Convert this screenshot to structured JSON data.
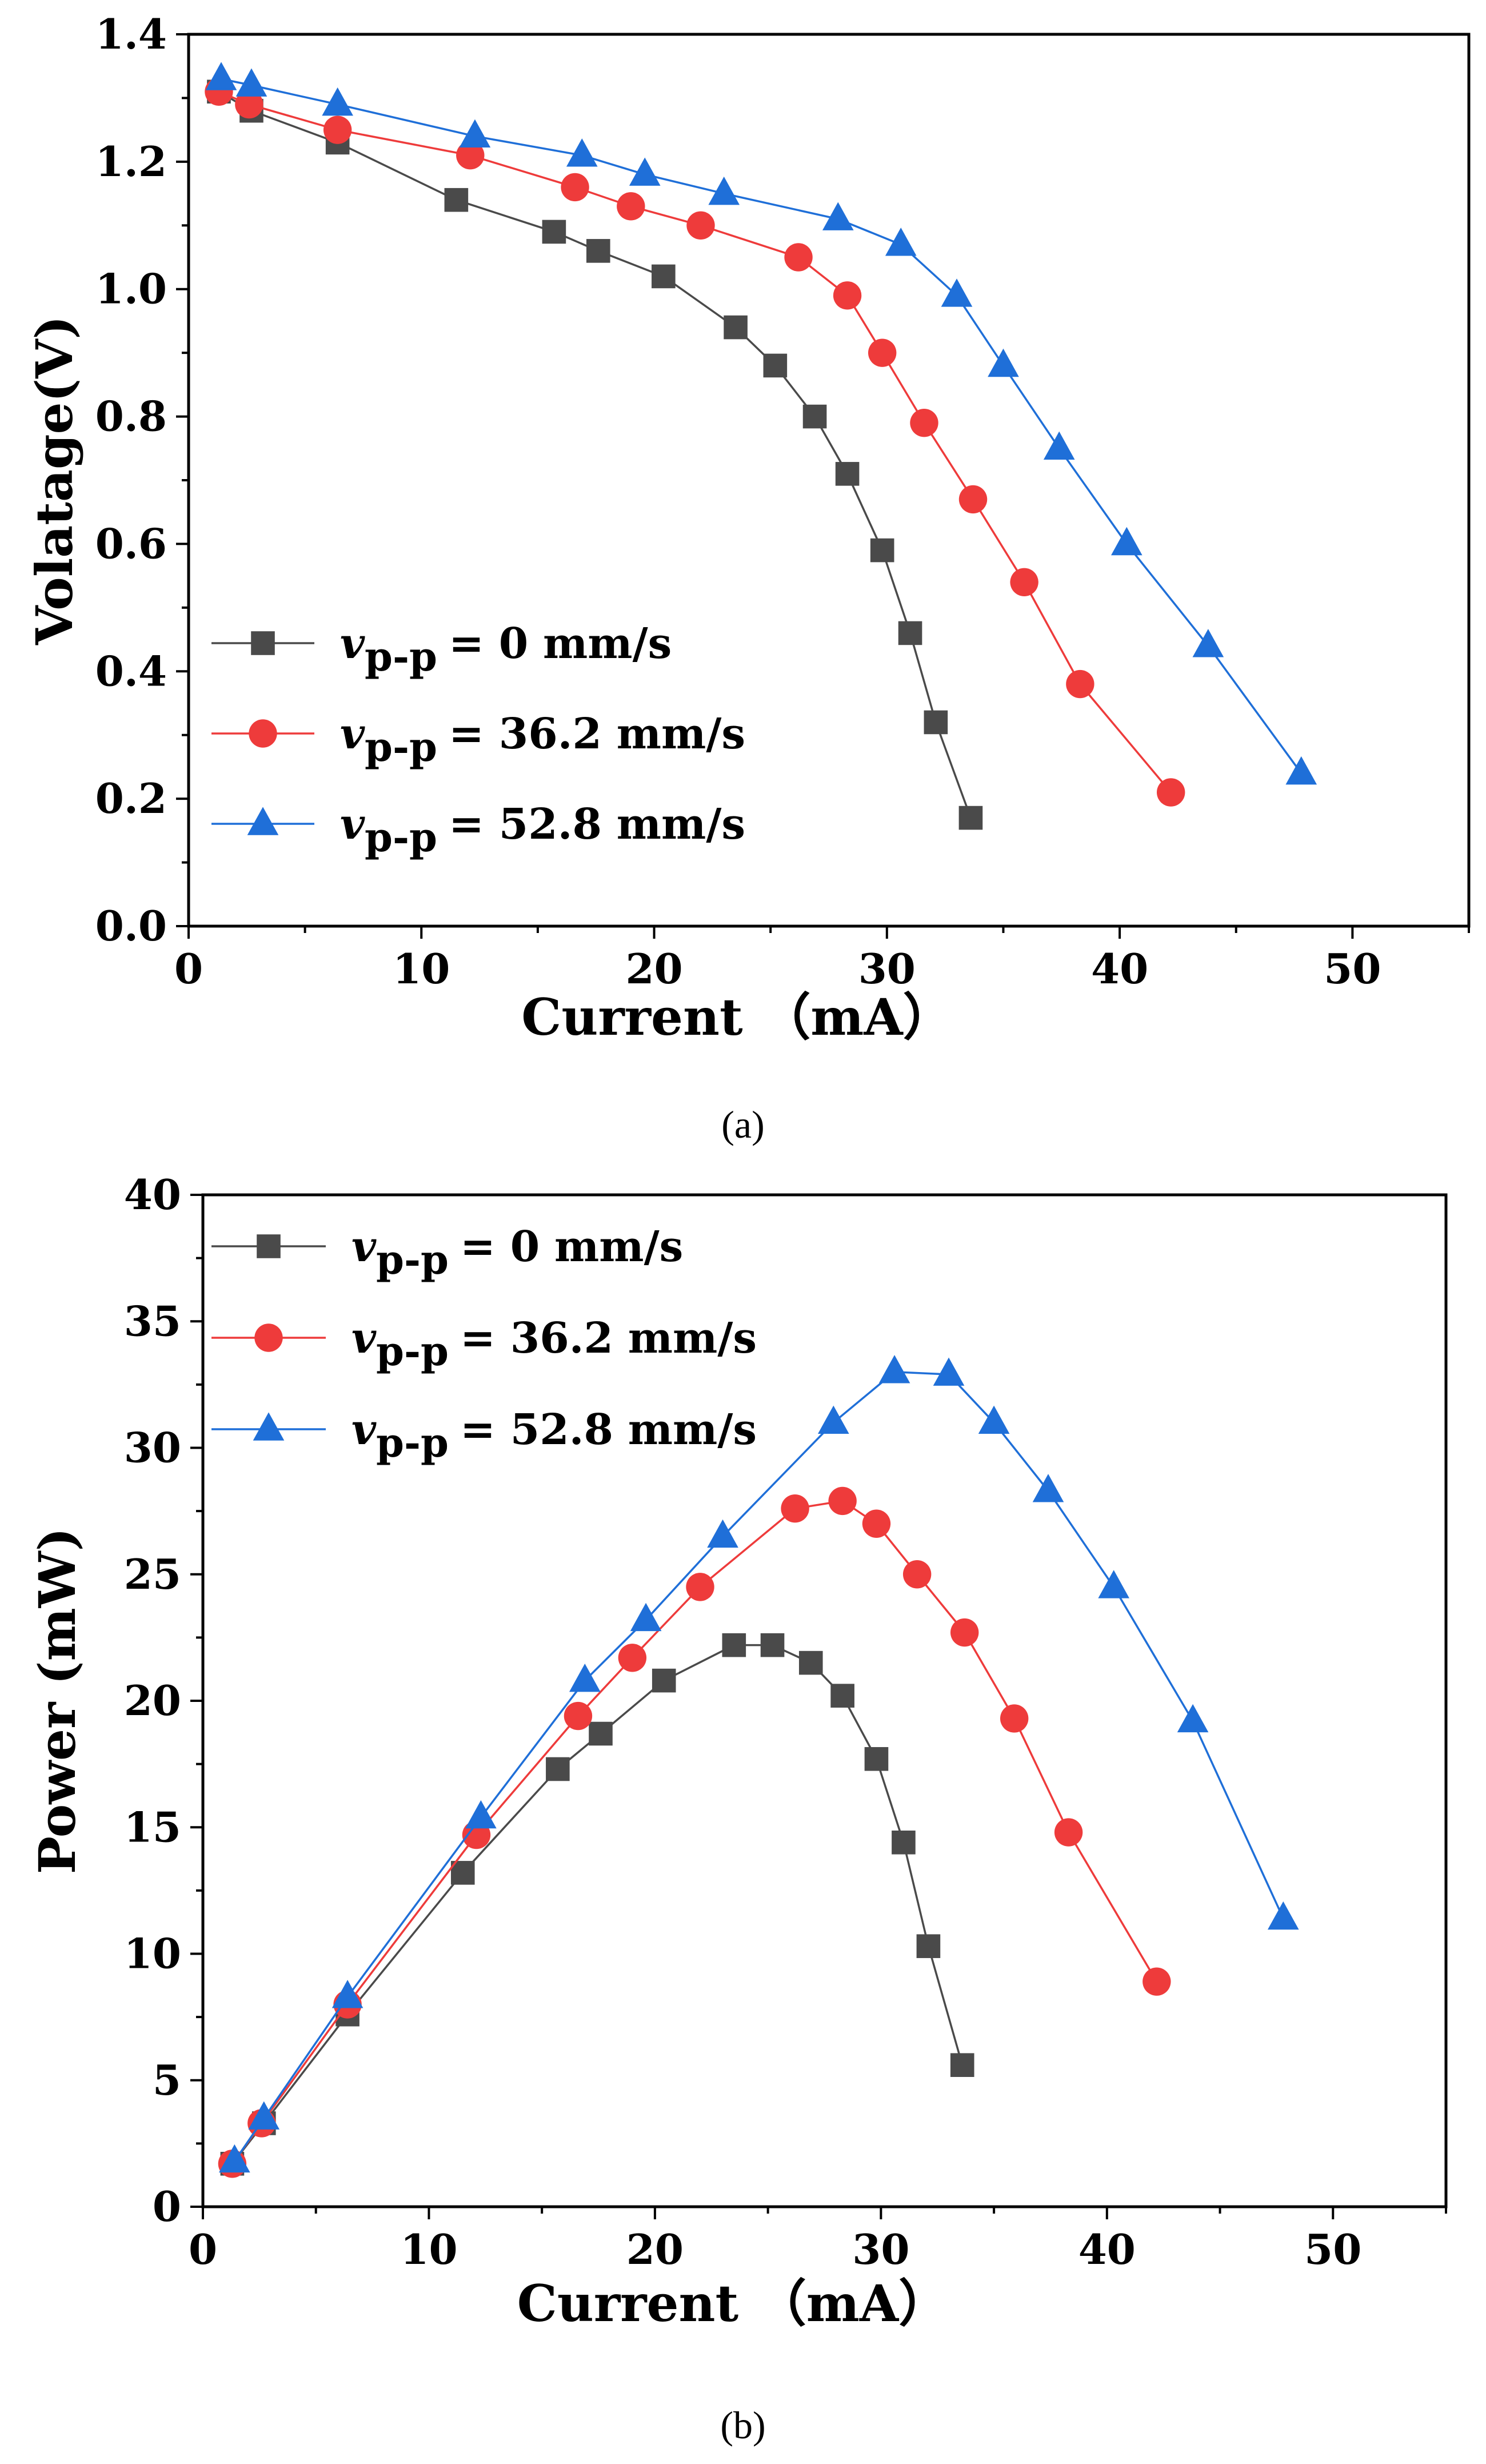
{
  "chart_data": [
    {
      "type": "line",
      "panel_label": "(a)",
      "xlabel": "Current （mA）",
      "ylabel": "Volatage(V)",
      "xlim": [
        0,
        55
      ],
      "ylim": [
        0,
        1.4
      ],
      "xticks": [
        "0",
        "10",
        "20",
        "30",
        "40",
        "50"
      ],
      "yticks": [
        "0.0",
        "0.2",
        "0.4",
        "0.6",
        "0.8",
        "1.0",
        "1.2",
        "1.4"
      ],
      "legend_position": "bottom-left",
      "series": [
        {
          "name": "v_p-p = 0 mm/s",
          "legend": {
            "symbol": "v",
            "sub": "p-p",
            "value": "= 0 mm/s"
          },
          "color": "#4a4a4a",
          "marker": "square",
          "x": [
            1.3,
            2.7,
            6.4,
            11.5,
            15.7,
            17.6,
            20.4,
            23.5,
            25.2,
            26.9,
            28.3,
            29.8,
            31.0,
            32.1,
            33.6
          ],
          "y": [
            1.31,
            1.28,
            1.23,
            1.14,
            1.09,
            1.06,
            1.02,
            0.94,
            0.88,
            0.8,
            0.71,
            0.59,
            0.46,
            0.32,
            0.17
          ]
        },
        {
          "name": "v_p-p = 36.2 mm/s",
          "legend": {
            "symbol": "v",
            "sub": "p-p",
            "value": "= 36.2 mm/s"
          },
          "color": "#ee3b3b",
          "marker": "circle",
          "x": [
            1.3,
            2.6,
            6.4,
            12.1,
            16.6,
            19.0,
            22.0,
            26.2,
            28.3,
            29.8,
            31.6,
            33.7,
            35.9,
            38.3,
            42.2
          ],
          "y": [
            1.31,
            1.29,
            1.25,
            1.21,
            1.16,
            1.13,
            1.1,
            1.05,
            0.99,
            0.9,
            0.79,
            0.67,
            0.54,
            0.38,
            0.21
          ]
        },
        {
          "name": "v_p-p = 52.8 mm/s",
          "legend": {
            "symbol": "v",
            "sub": "p-p",
            "value": "= 52.8 mm/s"
          },
          "color": "#1f6fd8",
          "marker": "triangle",
          "x": [
            1.4,
            2.7,
            6.4,
            12.3,
            16.9,
            19.6,
            23.0,
            27.9,
            30.6,
            33.0,
            35.0,
            37.4,
            40.3,
            43.8,
            47.8
          ],
          "y": [
            1.33,
            1.32,
            1.29,
            1.24,
            1.21,
            1.18,
            1.15,
            1.11,
            1.07,
            0.99,
            0.88,
            0.75,
            0.6,
            0.44,
            0.24
          ]
        }
      ]
    },
    {
      "type": "line",
      "panel_label": "(b)",
      "xlabel": "Current （mA）",
      "ylabel": "Power (mW)",
      "xlim": [
        0,
        55
      ],
      "ylim": [
        0,
        40
      ],
      "xticks": [
        "0",
        "10",
        "20",
        "30",
        "40",
        "50"
      ],
      "yticks": [
        "0",
        "5",
        "10",
        "15",
        "20",
        "25",
        "30",
        "35",
        "40"
      ],
      "legend_position": "top-left",
      "series": [
        {
          "name": "v_p-p = 0 mm/s",
          "legend": {
            "symbol": "v",
            "sub": "p-p",
            "value": "= 0 mm/s"
          },
          "color": "#4a4a4a",
          "marker": "square",
          "x": [
            1.3,
            2.7,
            6.4,
            11.5,
            15.7,
            17.6,
            20.4,
            23.5,
            25.2,
            26.9,
            28.3,
            29.8,
            31.0,
            32.1,
            33.6
          ],
          "y": [
            1.7,
            3.3,
            7.6,
            13.2,
            17.3,
            18.7,
            20.8,
            22.2,
            22.2,
            21.5,
            20.2,
            17.7,
            14.4,
            10.3,
            5.6
          ]
        },
        {
          "name": "v_p-p = 36.2 mm/s",
          "legend": {
            "symbol": "v",
            "sub": "p-p",
            "value": "= 36.2 mm/s"
          },
          "color": "#ee3b3b",
          "marker": "circle",
          "x": [
            1.3,
            2.6,
            6.4,
            12.1,
            16.6,
            19.0,
            22.0,
            26.2,
            28.3,
            29.8,
            31.6,
            33.7,
            35.9,
            38.3,
            42.2
          ],
          "y": [
            1.7,
            3.3,
            8.0,
            14.7,
            19.4,
            21.7,
            24.5,
            27.6,
            27.9,
            27.0,
            25.0,
            22.7,
            19.3,
            14.8,
            8.9
          ]
        },
        {
          "name": "v_p-p = 52.8 mm/s",
          "legend": {
            "symbol": "v",
            "sub": "p-p",
            "value": "= 52.8 mm/s"
          },
          "color": "#1f6fd8",
          "marker": "triangle",
          "x": [
            1.4,
            2.7,
            6.4,
            12.3,
            16.9,
            19.6,
            23.0,
            27.9,
            30.6,
            33.0,
            35.0,
            37.4,
            40.3,
            43.8,
            47.8
          ],
          "y": [
            1.8,
            3.5,
            8.3,
            15.4,
            20.8,
            23.2,
            26.5,
            31.0,
            33.0,
            32.9,
            31.0,
            28.3,
            24.5,
            19.2,
            11.4
          ]
        }
      ]
    }
  ]
}
